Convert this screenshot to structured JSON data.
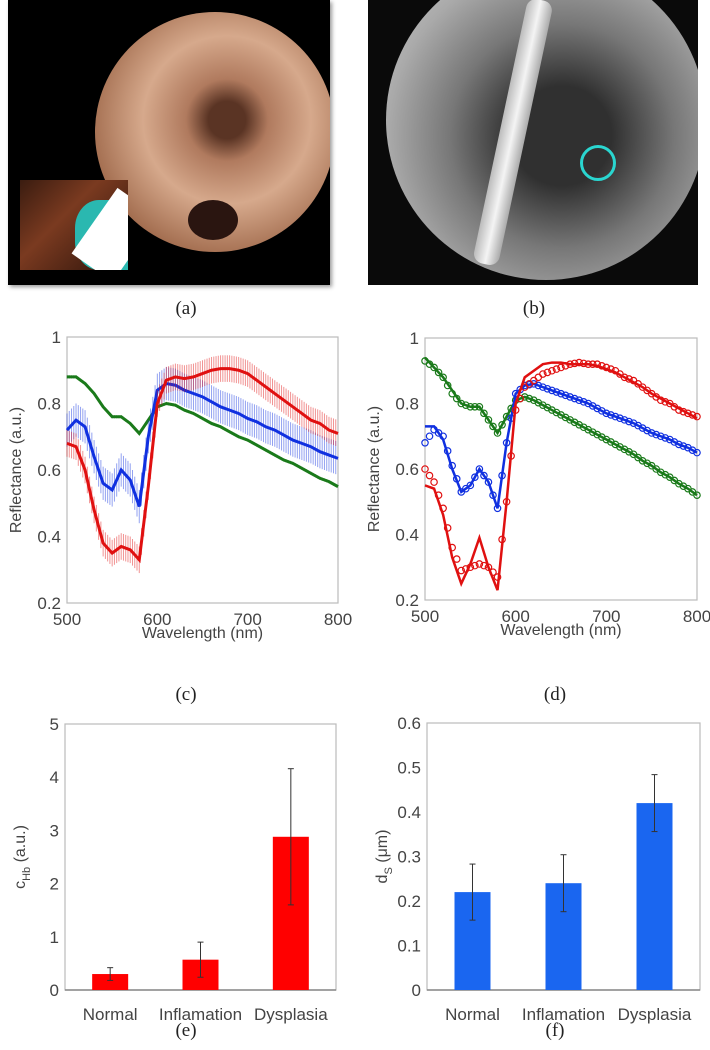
{
  "panels": {
    "a": {
      "caption": "(a)"
    },
    "b": {
      "caption": "(b)"
    },
    "c": {
      "caption": "(c)"
    },
    "d": {
      "caption": "(d)"
    },
    "e": {
      "caption": "(e)"
    },
    "f": {
      "caption": "(f)"
    }
  },
  "colors": {
    "red": "#e01010",
    "blue": "#1030e0",
    "green": "#1a7a1a",
    "bar_red": "#ff0000",
    "bar_blue": "#1a66f0",
    "marker_cyan": "#2ad6d0"
  },
  "chart_data": [
    {
      "id": "c",
      "type": "line",
      "xlabel": "Wavelength (nm)",
      "ylabel": "Reflectance (a.u.)",
      "xlim": [
        500,
        800
      ],
      "ylim": [
        0.2,
        1
      ],
      "xticks": [
        "500",
        "600",
        "700",
        "800"
      ],
      "yticks": [
        "0.2",
        "0.4",
        "0.6",
        "0.8",
        "1"
      ],
      "x": [
        500,
        510,
        520,
        530,
        540,
        550,
        560,
        570,
        580,
        590,
        600,
        610,
        620,
        630,
        640,
        650,
        660,
        670,
        680,
        690,
        700,
        710,
        720,
        730,
        740,
        750,
        760,
        770,
        780,
        790,
        800
      ],
      "series": [
        {
          "color": "green",
          "error": 0.005,
          "values": [
            0.88,
            0.88,
            0.86,
            0.83,
            0.79,
            0.76,
            0.76,
            0.74,
            0.71,
            0.75,
            0.79,
            0.8,
            0.795,
            0.78,
            0.77,
            0.755,
            0.74,
            0.73,
            0.715,
            0.7,
            0.69,
            0.675,
            0.66,
            0.645,
            0.63,
            0.62,
            0.605,
            0.59,
            0.575,
            0.565,
            0.55
          ]
        },
        {
          "color": "blue",
          "error": 0.05,
          "values": [
            0.72,
            0.75,
            0.73,
            0.64,
            0.56,
            0.54,
            0.6,
            0.57,
            0.49,
            0.7,
            0.84,
            0.86,
            0.855,
            0.84,
            0.83,
            0.82,
            0.805,
            0.79,
            0.78,
            0.77,
            0.755,
            0.745,
            0.73,
            0.72,
            0.705,
            0.69,
            0.68,
            0.67,
            0.655,
            0.645,
            0.635
          ]
        },
        {
          "color": "red",
          "error": 0.04,
          "values": [
            0.68,
            0.67,
            0.6,
            0.48,
            0.38,
            0.35,
            0.37,
            0.36,
            0.33,
            0.55,
            0.8,
            0.87,
            0.88,
            0.875,
            0.88,
            0.89,
            0.9,
            0.905,
            0.905,
            0.9,
            0.89,
            0.87,
            0.85,
            0.83,
            0.81,
            0.79,
            0.77,
            0.75,
            0.74,
            0.72,
            0.71
          ]
        }
      ]
    },
    {
      "id": "d",
      "type": "scatter",
      "xlabel": "Wavelength (nm)",
      "ylabel": "Reflectance (a.u.)",
      "xlim": [
        500,
        800
      ],
      "ylim": [
        0.2,
        1
      ],
      "xticks": [
        "500",
        "600",
        "700",
        "800"
      ],
      "yticks": [
        "0.2",
        "0.4",
        "0.6",
        "0.8",
        "1"
      ],
      "x": [
        500,
        510,
        520,
        530,
        540,
        550,
        560,
        570,
        580,
        590,
        600,
        610,
        620,
        630,
        640,
        650,
        660,
        670,
        680,
        690,
        700,
        710,
        720,
        730,
        740,
        750,
        760,
        770,
        780,
        790,
        800
      ],
      "series": [
        {
          "color": "green",
          "values": [
            0.93,
            0.91,
            0.88,
            0.83,
            0.8,
            0.79,
            0.79,
            0.75,
            0.71,
            0.76,
            0.81,
            0.82,
            0.81,
            0.795,
            0.78,
            0.765,
            0.75,
            0.735,
            0.72,
            0.705,
            0.69,
            0.675,
            0.66,
            0.645,
            0.625,
            0.61,
            0.59,
            0.575,
            0.555,
            0.54,
            0.52
          ],
          "fit": [
            0.94,
            0.91,
            0.88,
            0.84,
            0.8,
            0.79,
            0.79,
            0.75,
            0.71,
            0.76,
            0.81,
            0.82,
            0.81,
            0.795,
            0.78,
            0.765,
            0.75,
            0.735,
            0.72,
            0.705,
            0.69,
            0.675,
            0.66,
            0.645,
            0.625,
            0.61,
            0.59,
            0.575,
            0.555,
            0.54,
            0.52
          ]
        },
        {
          "color": "blue",
          "values": [
            0.68,
            0.72,
            0.7,
            0.61,
            0.53,
            0.55,
            0.6,
            0.56,
            0.48,
            0.68,
            0.83,
            0.855,
            0.86,
            0.85,
            0.84,
            0.83,
            0.82,
            0.81,
            0.8,
            0.785,
            0.77,
            0.76,
            0.75,
            0.74,
            0.725,
            0.71,
            0.7,
            0.69,
            0.675,
            0.665,
            0.65
          ],
          "fit": [
            0.73,
            0.73,
            0.69,
            0.6,
            0.53,
            0.55,
            0.6,
            0.56,
            0.48,
            0.68,
            0.83,
            0.855,
            0.86,
            0.85,
            0.84,
            0.83,
            0.82,
            0.81,
            0.8,
            0.785,
            0.77,
            0.76,
            0.75,
            0.74,
            0.725,
            0.71,
            0.7,
            0.69,
            0.675,
            0.665,
            0.65
          ]
        },
        {
          "color": "red",
          "values": [
            0.6,
            0.56,
            0.48,
            0.36,
            0.29,
            0.3,
            0.31,
            0.3,
            0.27,
            0.5,
            0.78,
            0.85,
            0.87,
            0.89,
            0.9,
            0.91,
            0.92,
            0.925,
            0.92,
            0.92,
            0.91,
            0.9,
            0.88,
            0.87,
            0.85,
            0.83,
            0.81,
            0.8,
            0.78,
            0.77,
            0.76
          ],
          "fit": [
            0.55,
            0.54,
            0.46,
            0.33,
            0.25,
            0.31,
            0.39,
            0.3,
            0.23,
            0.5,
            0.8,
            0.88,
            0.9,
            0.92,
            0.925,
            0.925,
            0.92,
            0.92,
            0.92,
            0.915,
            0.905,
            0.895,
            0.88,
            0.865,
            0.85,
            0.83,
            0.815,
            0.8,
            0.785,
            0.77,
            0.755
          ]
        }
      ]
    },
    {
      "id": "e",
      "type": "bar",
      "ylabel": "c",
      "ylabel_sub": "Hb",
      "ylabel_unit": " (a.u.)",
      "ylim": [
        0,
        5
      ],
      "yticks": [
        "0",
        "1",
        "2",
        "3",
        "4",
        "5"
      ],
      "categories": [
        "Normal",
        "Inflamation",
        "Dysplasia"
      ],
      "values": [
        0.3,
        0.57,
        2.88
      ],
      "errors": [
        0.12,
        0.33,
        1.28
      ],
      "color": "bar_red"
    },
    {
      "id": "f",
      "type": "bar",
      "ylabel": "d",
      "ylabel_sub": "S",
      "ylabel_unit": " (μm)",
      "ylim": [
        0,
        0.6
      ],
      "yticks": [
        "0",
        "0.1",
        "0.2",
        "0.3",
        "0.4",
        "0.5",
        "0.6"
      ],
      "categories": [
        "Normal",
        "Inflamation",
        "Dysplasia"
      ],
      "values": [
        0.22,
        0.24,
        0.42
      ],
      "errors": [
        0.063,
        0.064,
        0.064
      ],
      "color": "bar_blue"
    }
  ]
}
